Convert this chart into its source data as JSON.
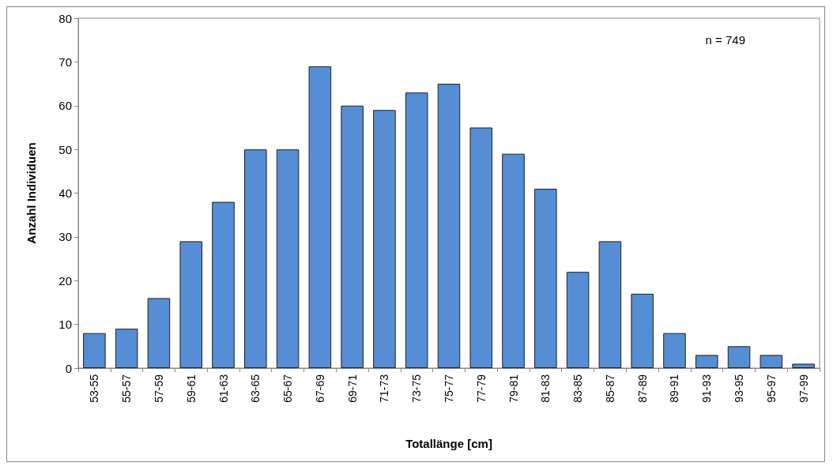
{
  "chart_data": {
    "type": "bar",
    "xlabel": "Totallänge [cm]",
    "ylabel": "Anzahl Individuen",
    "categories": [
      "53-55",
      "55-57",
      "57-59",
      "59-61",
      "61-63",
      "63-65",
      "65-67",
      "67-69",
      "69-71",
      "71-73",
      "73-75",
      "75-77",
      "77-79",
      "79-81",
      "81-83",
      "83-85",
      "85-87",
      "87-89",
      "89-91",
      "91-93",
      "93-95",
      "95-97",
      "97-99"
    ],
    "values": [
      8,
      9,
      16,
      29,
      38,
      50,
      50,
      69,
      60,
      59,
      63,
      65,
      55,
      49,
      41,
      22,
      29,
      17,
      8,
      3,
      5,
      3,
      1
    ],
    "color": "#558ed5",
    "ylim": [
      0,
      80
    ],
    "yticks": [
      0,
      10,
      20,
      30,
      40,
      50,
      60,
      70,
      80
    ],
    "annotations": [
      "n = 749"
    ],
    "grid": false
  }
}
